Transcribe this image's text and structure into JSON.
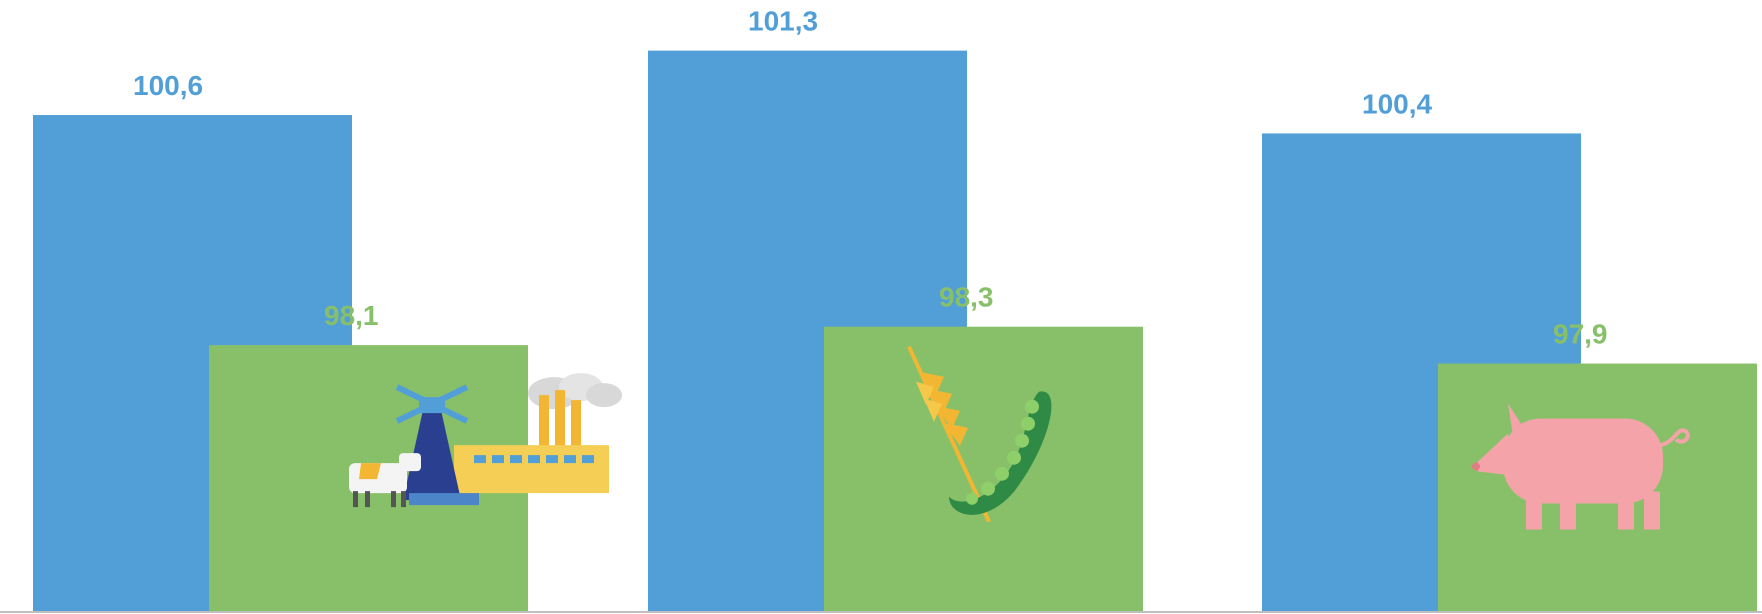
{
  "chart_data": {
    "type": "bar",
    "categories": [
      "",
      "",
      ""
    ],
    "series": [
      {
        "values": [
          100.6,
          101.3,
          100.4
        ],
        "labels": [
          "100,6",
          "101,3",
          "100,4"
        ],
        "color": "#529fd7"
      },
      {
        "values": [
          98.1,
          98.3,
          97.9
        ],
        "labels": [
          "98,1",
          "98,3",
          "97,9"
        ],
        "color": "#88c06a"
      }
    ],
    "icons": [
      "windmill-factory-cow-icon",
      "wheat-pea-pod-icon",
      "pig-icon"
    ],
    "ylim": [
      95.2,
      101.85
    ],
    "grid": false,
    "legend": "none",
    "baseline_color": "#bfbfbf"
  }
}
